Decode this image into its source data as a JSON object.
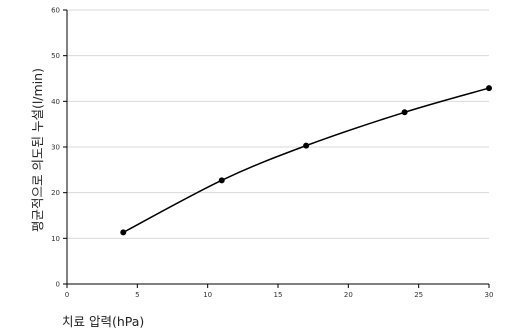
{
  "chart_data": {
    "type": "line",
    "title": "",
    "xlabel": "치료 압력(hPa)",
    "ylabel": "평균적으로 의도된 누설(l/min)",
    "xlim": [
      0,
      30
    ],
    "ylim": [
      0,
      60
    ],
    "xticks": [
      0,
      5,
      10,
      15,
      20,
      25,
      30
    ],
    "yticks": [
      0,
      10,
      20,
      30,
      40,
      50,
      60
    ],
    "grid": "horizontal",
    "legend": "none",
    "colors": {
      "line": "#000000",
      "grid": "#d9d9d9",
      "axis": "#000000"
    },
    "series": [
      {
        "x": [
          4,
          11,
          17,
          24,
          30
        ],
        "values": [
          11.3,
          22.7,
          30.3,
          37.6,
          42.9
        ]
      }
    ]
  }
}
